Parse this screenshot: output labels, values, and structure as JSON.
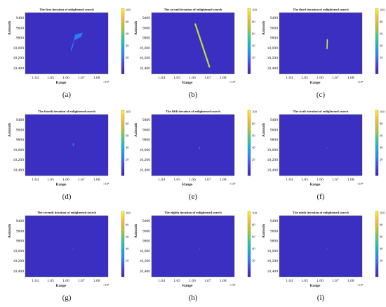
{
  "chart_data": [
    {
      "type": "heatmap",
      "panel": "a",
      "title": "The first iteration of enlightened search",
      "caption": "(a)",
      "xlabel": "Range",
      "ylabel": "Azimuth",
      "x_exponent": "×10⁴",
      "xticks": [
        "1.64",
        "1.65",
        "1.66",
        "1.67",
        "1.68"
      ],
      "yticks": [
        "9400",
        "9600",
        "9800",
        "10,000",
        "10,200",
        "10,400"
      ],
      "colorbar_ticks": [
        "100",
        "80",
        "60",
        "40",
        "20"
      ],
      "clim": [
        0,
        100
      ],
      "highlight": {
        "shape": "band",
        "points": [
          [
            1.666,
            9740
          ],
          [
            1.671,
            9700
          ],
          [
            1.67,
            9780
          ],
          [
            1.6655,
            9850
          ],
          [
            1.6645,
            9990
          ],
          [
            1.6632,
            10075
          ],
          [
            1.6632,
            10025
          ],
          [
            1.665,
            9880
          ]
        ],
        "value": 25
      }
    },
    {
      "type": "heatmap",
      "panel": "b",
      "title": "The second iteration of enlightened search",
      "caption": "(b)",
      "xlabel": "Range",
      "ylabel": "Azimuth",
      "x_exponent": "×10⁴",
      "xticks": [
        "1.64",
        "1.65",
        "1.66",
        "1.67",
        "1.68"
      ],
      "yticks": [
        "9400",
        "9600",
        "9800",
        "10,000",
        "10,200",
        "10,400"
      ],
      "colorbar_ticks": [
        "100",
        "80",
        "60",
        "40",
        "20"
      ],
      "clim": [
        0,
        100
      ],
      "highlight": {
        "shape": "streak",
        "from": [
          1.662,
          9530
        ],
        "to": [
          1.6712,
          10380
        ],
        "value": 65
      }
    },
    {
      "type": "heatmap",
      "panel": "c",
      "title": "The third iteration of enlightened search",
      "caption": "(c)",
      "xlabel": "Range",
      "ylabel": "Azimuth",
      "x_exponent": "×10⁴",
      "xticks": [
        "1.64",
        "1.65",
        "1.66",
        "1.67",
        "1.68"
      ],
      "yticks": [
        "9400",
        "9600",
        "9800",
        "10,000",
        "10,200",
        "10,400"
      ],
      "colorbar_ticks": [
        "100",
        "80",
        "60",
        "40",
        "20"
      ],
      "clim": [
        0,
        100
      ],
      "highlight": {
        "shape": "streak",
        "from": [
          1.6648,
          9840
        ],
        "to": [
          1.6646,
          10020
        ],
        "value": 75
      }
    },
    {
      "type": "heatmap",
      "panel": "d",
      "title": "The fourth iteration of enlightened search",
      "caption": "(d)",
      "xlabel": "Range",
      "ylabel": "Azimuth",
      "x_exponent": "×10⁴",
      "xticks": [
        "1.64",
        "1.65",
        "1.66",
        "1.67",
        "1.68"
      ],
      "yticks": [
        "9400",
        "9600",
        "9800",
        "10,000",
        "10,200",
        "10,400"
      ],
      "colorbar_ticks": [
        "100",
        "80",
        "60",
        "40",
        "20"
      ],
      "clim": [
        0,
        100
      ],
      "highlight": {
        "shape": "streak",
        "from": [
          1.6648,
          9880
        ],
        "to": [
          1.6647,
          9920
        ],
        "value": 45
      }
    },
    {
      "type": "heatmap",
      "panel": "e",
      "title": "The fifth iteration of enlightened search",
      "caption": "(e)",
      "xlabel": "Range",
      "ylabel": "Azimuth",
      "x_exponent": "×10⁴",
      "xticks": [
        "1.64",
        "1.65",
        "1.66",
        "1.67",
        "1.68"
      ],
      "yticks": [
        "9400",
        "9600",
        "9800",
        "10,000",
        "10,200",
        "10,400"
      ],
      "colorbar_ticks": [
        "100",
        "80",
        "60",
        "40",
        "20"
      ],
      "clim": [
        0,
        100
      ],
      "highlight": {
        "shape": "streak",
        "from": [
          1.6648,
          9960
        ],
        "to": [
          1.6647,
          9985
        ],
        "value": 35
      }
    },
    {
      "type": "heatmap",
      "panel": "f",
      "title": "The  sixth  iteration of enlightened search",
      "caption": "(f)",
      "xlabel": "Range",
      "ylabel": "Azimuth",
      "x_exponent": "×10⁴",
      "xticks": [
        "1.64",
        "1.65",
        "1.66",
        "1.67",
        "1.68"
      ],
      "yticks": [
        "9400",
        "9600",
        "9800",
        "10,000",
        "10,200",
        "10,400"
      ],
      "colorbar_ticks": [
        "100",
        "80",
        "60",
        "40",
        "20"
      ],
      "clim": [
        0,
        100
      ],
      "highlight": {
        "shape": "dot",
        "at": [
          1.6647,
          9965
        ],
        "value": 35
      }
    },
    {
      "type": "heatmap",
      "panel": "g",
      "title": "The seventh iteration of enlightened search",
      "caption": "(g)",
      "xlabel": "Range",
      "ylabel": "Azimuth",
      "x_exponent": "×10⁴",
      "xticks": [
        "1.64",
        "1.65",
        "1.66",
        "1.67",
        "1.68"
      ],
      "yticks": [
        "9400",
        "9600",
        "9800",
        "10,000",
        "10,200",
        "10,400"
      ],
      "colorbar_ticks": [
        "100",
        "80",
        "60",
        "40",
        "20"
      ],
      "clim": [
        0,
        100
      ],
      "highlight": {
        "shape": "dot",
        "at": [
          1.6647,
          9965
        ],
        "value": 30
      }
    },
    {
      "type": "heatmap",
      "panel": "h",
      "title": "The eighth iteration of enlightened search",
      "caption": "(h)",
      "xlabel": "Range",
      "ylabel": "Azimuth",
      "x_exponent": "×10⁴",
      "xticks": [
        "1.64",
        "1.65",
        "1.66",
        "1.67",
        "1.68"
      ],
      "yticks": [
        "9400",
        "9600",
        "9800",
        "10,000",
        "10,200",
        "10,400"
      ],
      "colorbar_ticks": [
        "100",
        "80",
        "60",
        "40",
        "20"
      ],
      "clim": [
        0,
        100
      ],
      "highlight": {
        "shape": "dot",
        "at": [
          1.6647,
          9965
        ],
        "value": 30
      }
    },
    {
      "type": "heatmap",
      "panel": "i",
      "title": "The ninth iteration of enlightened search",
      "caption": "(i)",
      "xlabel": "Range",
      "ylabel": "Azimuth",
      "x_exponent": "×10⁴",
      "xticks": [
        "1.64",
        "1.65",
        "1.66",
        "1.67",
        "1.68"
      ],
      "yticks": [
        "9400",
        "9600",
        "9800",
        "10,000",
        "10,200",
        "10,400"
      ],
      "colorbar_ticks": [
        "100",
        "80",
        "60",
        "40",
        "20"
      ],
      "clim": [
        0,
        100
      ],
      "highlight": {
        "shape": "dot",
        "at": [
          1.6647,
          9965
        ],
        "value": 30
      }
    }
  ],
  "colors": {
    "background": "#3a2fc0",
    "colormap": [
      "#3e26a8",
      "#4744e8",
      "#2f82fb",
      "#14b4d5",
      "#41cc8b",
      "#b8c52b",
      "#fbbc3d",
      "#f9fb15"
    ]
  }
}
